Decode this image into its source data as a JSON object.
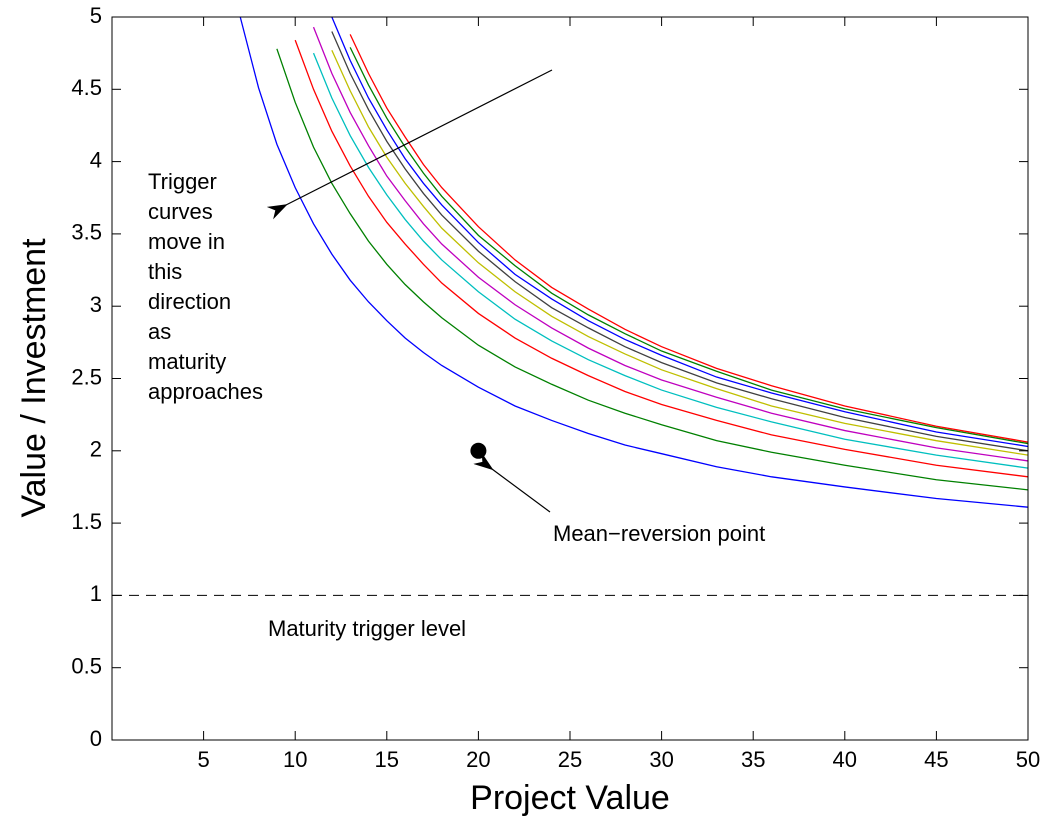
{
  "chart_data": {
    "type": "line",
    "xlabel": "Project Value",
    "ylabel": "Value / Investment",
    "xlim": [
      0,
      50
    ],
    "xticks": [
      5,
      10,
      15,
      20,
      25,
      30,
      35,
      40,
      45,
      50
    ],
    "ylim": [
      0,
      5
    ],
    "yticks": [
      0,
      0.5,
      1,
      1.5,
      2,
      2.5,
      3,
      3.5,
      4,
      4.5,
      5
    ],
    "grid": false,
    "x": [
      7,
      8,
      9,
      10,
      11,
      12,
      13,
      14,
      15,
      16,
      17,
      18,
      20,
      22,
      24,
      26,
      28,
      30,
      33,
      36,
      40,
      45,
      50
    ],
    "series": [
      {
        "color": "#0000ff",
        "values": [
          5.0,
          4.51,
          4.12,
          3.82,
          3.57,
          3.36,
          3.18,
          3.03,
          2.9,
          2.78,
          2.68,
          2.59,
          2.44,
          2.31,
          2.21,
          2.12,
          2.04,
          1.98,
          1.89,
          1.82,
          1.75,
          1.67,
          1.61
        ]
      },
      {
        "color": "#008000",
        "values": [
          null,
          null,
          4.78,
          4.41,
          4.1,
          3.85,
          3.64,
          3.45,
          3.29,
          3.15,
          3.03,
          2.92,
          2.73,
          2.58,
          2.46,
          2.35,
          2.26,
          2.18,
          2.07,
          1.99,
          1.9,
          1.8,
          1.73
        ]
      },
      {
        "color": "#ff0000",
        "values": [
          null,
          null,
          null,
          4.84,
          4.5,
          4.21,
          3.97,
          3.76,
          3.58,
          3.43,
          3.29,
          3.16,
          2.95,
          2.78,
          2.64,
          2.52,
          2.41,
          2.32,
          2.21,
          2.11,
          2.01,
          1.9,
          1.82
        ]
      },
      {
        "color": "#00bfbf",
        "values": [
          null,
          null,
          null,
          null,
          4.75,
          4.44,
          4.18,
          3.96,
          3.77,
          3.6,
          3.45,
          3.32,
          3.1,
          2.91,
          2.76,
          2.63,
          2.52,
          2.42,
          2.3,
          2.2,
          2.08,
          1.97,
          1.88
        ]
      },
      {
        "color": "#bf00bf",
        "values": [
          null,
          null,
          null,
          null,
          4.93,
          4.61,
          4.34,
          4.11,
          3.9,
          3.73,
          3.57,
          3.43,
          3.2,
          3.01,
          2.85,
          2.71,
          2.59,
          2.49,
          2.37,
          2.26,
          2.14,
          2.02,
          1.93
        ]
      },
      {
        "color": "#bfbf00",
        "values": [
          null,
          null,
          null,
          null,
          null,
          4.77,
          4.49,
          4.24,
          4.03,
          3.85,
          3.69,
          3.54,
          3.3,
          3.1,
          2.93,
          2.79,
          2.67,
          2.56,
          2.43,
          2.31,
          2.19,
          2.07,
          1.97
        ]
      },
      {
        "color": "#404040",
        "values": [
          null,
          null,
          null,
          null,
          null,
          4.9,
          4.61,
          4.36,
          4.14,
          3.95,
          3.78,
          3.63,
          3.38,
          3.17,
          2.99,
          2.85,
          2.72,
          2.61,
          2.47,
          2.36,
          2.23,
          2.1,
          2.0
        ]
      },
      {
        "color": "#0000ff",
        "values": [
          null,
          null,
          null,
          null,
          null,
          5.0,
          4.7,
          4.44,
          4.22,
          4.02,
          3.85,
          3.7,
          3.44,
          3.22,
          3.05,
          2.9,
          2.77,
          2.66,
          2.51,
          2.4,
          2.27,
          2.13,
          2.03
        ]
      },
      {
        "color": "#008000",
        "values": [
          null,
          null,
          null,
          null,
          null,
          null,
          4.79,
          4.53,
          4.3,
          4.1,
          3.92,
          3.76,
          3.49,
          3.28,
          3.09,
          2.94,
          2.81,
          2.69,
          2.55,
          2.42,
          2.29,
          2.16,
          2.05
        ]
      },
      {
        "color": "#ff0000",
        "values": [
          null,
          null,
          null,
          null,
          null,
          null,
          4.88,
          4.61,
          4.37,
          4.17,
          3.98,
          3.82,
          3.55,
          3.32,
          3.13,
          2.98,
          2.84,
          2.72,
          2.57,
          2.45,
          2.31,
          2.17,
          2.06
        ]
      }
    ],
    "hline": 1,
    "hline_label": "Maturity trigger level",
    "point": {
      "x": 20,
      "y": 2,
      "label": "Mean−reversion point"
    },
    "annotation_lines": [
      "Trigger",
      "curves",
      "move in",
      "this",
      "direction",
      "as",
      "maturity",
      "approaches"
    ]
  }
}
